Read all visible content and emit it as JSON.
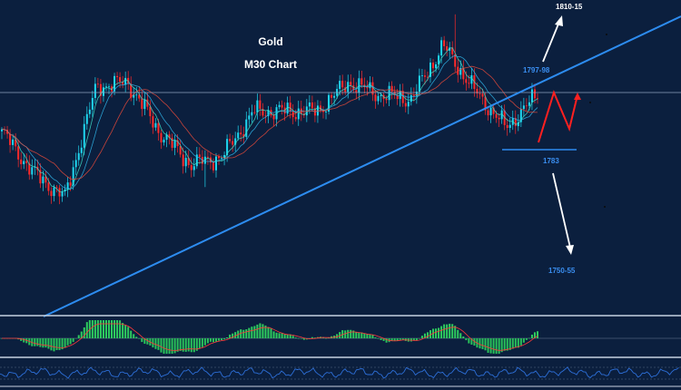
{
  "title": "Gold",
  "subtitle": "M30 Chart",
  "chart_data": {
    "type": "candlestick",
    "instrument": "Gold",
    "timeframe": "M30",
    "ylim": [
      1738,
      1814
    ],
    "colors": {
      "background": "#0b1f3e",
      "bull": "#1fd7f0",
      "bear": "#ff2a2a",
      "trendline": "#2d8cf0",
      "projection": "#ff2020",
      "arrow": "#ffffff",
      "label": "#3a8ef0",
      "hist_pos": "#2ecc5e",
      "hist_neg": "#29c25a"
    },
    "key_points": [
      1782,
      1772,
      1766,
      1793,
      1794,
      1782,
      1774,
      1776,
      1787,
      1787,
      1787,
      1794,
      1791,
      1790,
      1803,
      1792,
      1783,
      1791
    ],
    "levels": {
      "target_up": "1810-15",
      "resistance": "1797-98",
      "support": "1783",
      "target_down": "1750-55"
    },
    "horizontal_line": 1793,
    "support_line": 1783,
    "projection_path": [
      1782,
      1793,
      1786,
      1793
    ]
  }
}
